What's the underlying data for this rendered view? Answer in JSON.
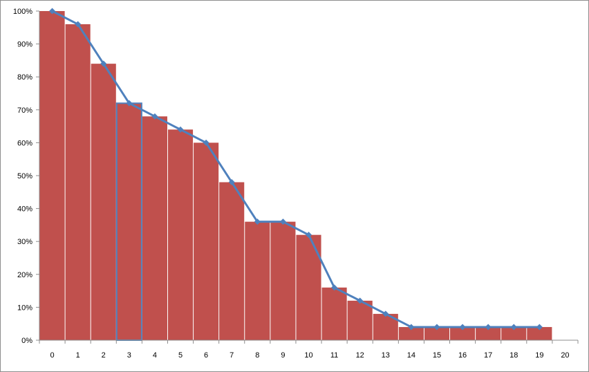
{
  "chart_data": {
    "type": "bar",
    "categories": [
      "0",
      "1",
      "2",
      "3",
      "4",
      "5",
      "6",
      "7",
      "8",
      "9",
      "10",
      "11",
      "12",
      "13",
      "14",
      "15",
      "16",
      "17",
      "18",
      "19",
      "20"
    ],
    "series": [
      {
        "type": "bar",
        "values": [
          100,
          96,
          84,
          72,
          68,
          64,
          60,
          48,
          36,
          36,
          32,
          16,
          12,
          8,
          4,
          4,
          4,
          4,
          4,
          4,
          null
        ]
      },
      {
        "type": "line",
        "marker": "diamond",
        "values": [
          100,
          96,
          84,
          72,
          68,
          64,
          60,
          48,
          36,
          36,
          32,
          16,
          12,
          8,
          4,
          4,
          4,
          4,
          4,
          4,
          null
        ]
      }
    ],
    "y_tick_labels": [
      "0%",
      "10%",
      "20%",
      "30%",
      "40%",
      "50%",
      "60%",
      "70%",
      "80%",
      "90%",
      "100%"
    ],
    "ylim": [
      0,
      100
    ],
    "title": "",
    "xlabel": "",
    "ylabel": "",
    "grid": false,
    "legend": "none",
    "highlighted_bars": [
      "3"
    ],
    "colors": {
      "bar": "#c0504d",
      "line": "#4f81bd",
      "axis": "#8c8c8c"
    }
  }
}
